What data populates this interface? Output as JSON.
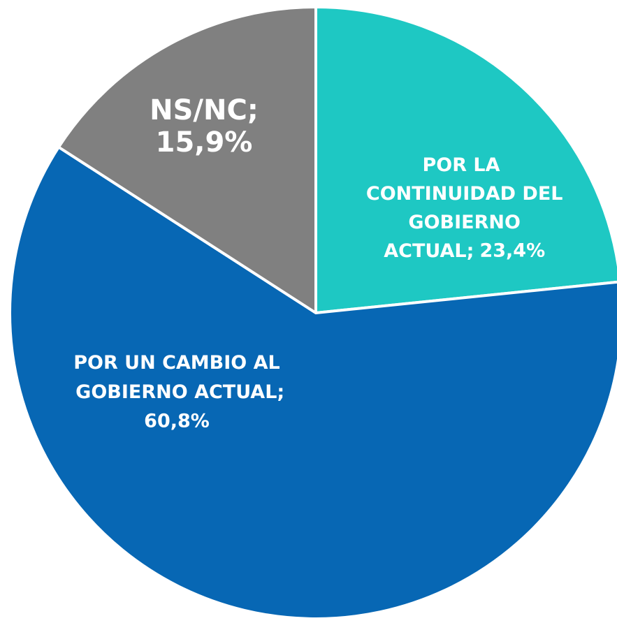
{
  "chart_data": {
    "type": "pie",
    "categories": [
      "POR LA CONTINUIDAD DEL GOBIERNO ACTUAL;",
      "POR UN CAMBIO AL GOBIERNO ACTUAL;",
      "NS/NC;"
    ],
    "values": [
      23.4,
      60.8,
      15.9
    ],
    "value_labels": [
      "23,4%",
      "60,8%",
      "15,9%"
    ],
    "colors": [
      "#1ec8c3",
      "#0767b4",
      "#808080"
    ]
  }
}
